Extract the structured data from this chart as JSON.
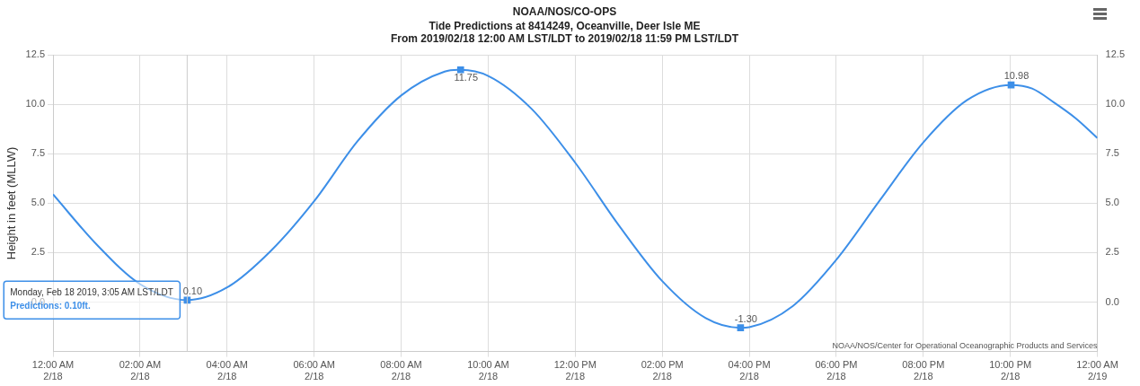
{
  "chart_data": {
    "type": "line",
    "title": "NOAA/NOS/CO-OPS",
    "subtitle": "Tide Predictions at 8414249, Oceanville, Deer Isle ME\nFrom 2019/02/18 12:00 AM LST/LDT to 2019/02/18 11:59 PM LST/LDT",
    "ylabel": "Height in feet (MLLW)",
    "x": [
      "2019-02-18T00:00",
      "2019-02-18T01:00",
      "2019-02-18T02:00",
      "2019-02-18T03:05",
      "2019-02-18T04:00",
      "2019-02-18T05:00",
      "2019-02-18T06:00",
      "2019-02-18T07:00",
      "2019-02-18T08:00",
      "2019-02-18T09:00",
      "2019-02-18T09:22",
      "2019-02-18T10:00",
      "2019-02-18T11:00",
      "2019-02-18T12:00",
      "2019-02-18T13:00",
      "2019-02-18T14:00",
      "2019-02-18T15:00",
      "2019-02-18T15:48",
      "2019-02-18T16:00",
      "2019-02-18T17:00",
      "2019-02-18T18:00",
      "2019-02-18T19:00",
      "2019-02-18T20:00",
      "2019-02-18T21:00",
      "2019-02-18T22:01",
      "2019-02-18T22:30",
      "2019-02-18T23:00",
      "2019-02-18T23:30",
      "2019-02-19T00:00"
    ],
    "series": [
      {
        "color": "#3d8fe8",
        "values": [
          5.45,
          2.92,
          0.91,
          0.1,
          0.74,
          2.58,
          5.1,
          8.14,
          10.45,
          11.66,
          11.75,
          11.44,
          9.77,
          7.05,
          3.89,
          1.06,
          -0.81,
          -1.3,
          -1.27,
          -0.2,
          2.14,
          5.15,
          8.08,
          10.21,
          10.98,
          10.8,
          10.1,
          9.3,
          8.3
        ],
        "marker": "none"
      },
      {
        "type": "scatter",
        "color": "#3d8fe8",
        "marker": "square",
        "x": [
          "2019-02-18T03:05",
          "2019-02-18T09:22",
          "2019-02-18T15:48",
          "2019-02-18T22:01"
        ],
        "values": [
          0.1,
          11.75,
          -1.3,
          10.98
        ],
        "value_labels": [
          "0.10",
          "11.75",
          "-1.30",
          "10.98"
        ]
      }
    ],
    "xlim": [
      "2019-02-18T00:00",
      "2019-02-19T00:00"
    ],
    "xticks": [
      {
        "value": "2019-02-18T00:00",
        "label": "12:00 AM\n2/18"
      },
      {
        "value": "2019-02-18T02:00",
        "label": "02:00 AM\n2/18"
      },
      {
        "value": "2019-02-18T04:00",
        "label": "04:00 AM\n2/18"
      },
      {
        "value": "2019-02-18T06:00",
        "label": "06:00 AM\n2/18"
      },
      {
        "value": "2019-02-18T08:00",
        "label": "08:00 AM\n2/18"
      },
      {
        "value": "2019-02-18T10:00",
        "label": "10:00 AM\n2/18"
      },
      {
        "value": "2019-02-18T12:00",
        "label": "12:00 PM\n2/18"
      },
      {
        "value": "2019-02-18T14:00",
        "label": "02:00 PM\n2/18"
      },
      {
        "value": "2019-02-18T16:00",
        "label": "04:00 PM\n2/18"
      },
      {
        "value": "2019-02-18T18:00",
        "label": "06:00 PM\n2/18"
      },
      {
        "value": "2019-02-18T20:00",
        "label": "08:00 PM\n2/18"
      },
      {
        "value": "2019-02-18T22:00",
        "label": "10:00 PM\n2/18"
      },
      {
        "value": "2019-02-19T00:00",
        "label": "12:00 AM\n2/19"
      }
    ],
    "ylim": [
      -2.5,
      12.5
    ],
    "yticks": [
      {
        "value": 0,
        "label": "0.0"
      },
      {
        "value": 2.5,
        "label": "2.5"
      },
      {
        "value": 5,
        "label": "5.0"
      },
      {
        "value": 7.5,
        "label": "7.5"
      },
      {
        "value": 10,
        "label": "10.0"
      },
      {
        "value": 12.5,
        "label": "12.5"
      }
    ],
    "y2lim": [
      -2.5,
      12.5
    ],
    "y2ticks": [
      {
        "value": 0,
        "label": "0.0"
      },
      {
        "value": 2.5,
        "label": "2.5"
      },
      {
        "value": 5,
        "label": "5.0"
      },
      {
        "value": 7.5,
        "label": "7.5"
      },
      {
        "value": 10,
        "label": "10.0"
      },
      {
        "value": 12.5,
        "label": "12.5"
      }
    ],
    "ref_lines": [
      {
        "axis": "x",
        "value": "2019-02-18T03:05",
        "color": "#cccccc"
      }
    ],
    "annotations": [
      {
        "text": "Monday, Feb 18 2019, 3:05 AM LST/LDT",
        "x": "2019-02-18T03:05",
        "y": 0.1
      },
      "Predictions: 0.10ft.",
      "NOAA/NOS/Center for Operational Oceanographic Products and Services"
    ],
    "grid": true,
    "legend": false,
    "line_style": "solid"
  }
}
